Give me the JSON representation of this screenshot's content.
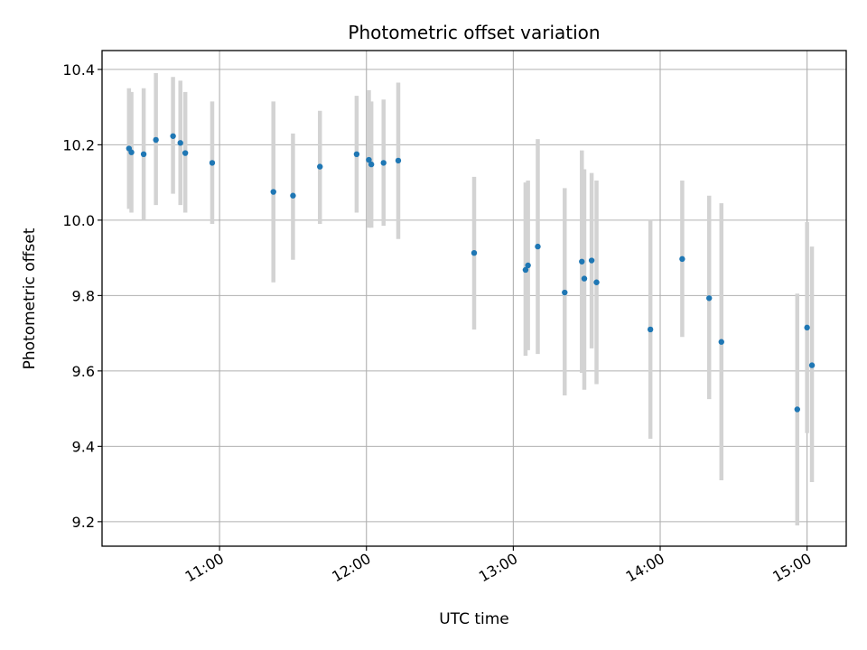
{
  "chart_data": {
    "type": "scatter",
    "title": "Photometric offset variation",
    "xlabel": "UTC time",
    "ylabel": "Photometric offset",
    "x_ticks": [
      "10:00",
      "11:00",
      "12:00",
      "13:00",
      "14:00",
      "15:00"
    ],
    "x_tick_labels": [
      "",
      "11:00",
      "12:00",
      "13:00",
      "14:00",
      "15:00"
    ],
    "y_ticks": [
      9.2,
      9.4,
      9.6,
      9.8,
      10.0,
      10.2,
      10.4
    ],
    "y_tick_labels": [
      "9.2",
      "9.4",
      "9.6",
      "9.8",
      "10.0",
      "10.2",
      "10.4"
    ],
    "xlim": [
      "10:12",
      "15:16"
    ],
    "ylim": [
      9.135,
      10.45
    ],
    "grid": true,
    "colors": {
      "marker": "#1f77b4",
      "errorbar": "#d3d3d3",
      "grid": "#b0b0b0",
      "axes": "#000000"
    },
    "points": [
      {
        "t": "10:23",
        "y": 10.19,
        "lo": 10.03,
        "hi": 10.35
      },
      {
        "t": "10:24",
        "y": 10.18,
        "lo": 10.02,
        "hi": 10.34
      },
      {
        "t": "10:29",
        "y": 10.175,
        "lo": 10.0,
        "hi": 10.35
      },
      {
        "t": "10:34",
        "y": 10.213,
        "lo": 10.04,
        "hi": 10.39
      },
      {
        "t": "10:41",
        "y": 10.223,
        "lo": 10.07,
        "hi": 10.38
      },
      {
        "t": "10:44",
        "y": 10.205,
        "lo": 10.04,
        "hi": 10.37
      },
      {
        "t": "10:46",
        "y": 10.178,
        "lo": 10.02,
        "hi": 10.34
      },
      {
        "t": "10:57",
        "y": 10.152,
        "lo": 9.99,
        "hi": 10.315
      },
      {
        "t": "11:22",
        "y": 10.075,
        "lo": 9.835,
        "hi": 10.315
      },
      {
        "t": "11:30",
        "y": 10.065,
        "lo": 9.895,
        "hi": 10.23
      },
      {
        "t": "11:41",
        "y": 10.142,
        "lo": 9.99,
        "hi": 10.29
      },
      {
        "t": "11:56",
        "y": 10.175,
        "lo": 10.02,
        "hi": 10.33
      },
      {
        "t": "12:01",
        "y": 10.16,
        "lo": 9.98,
        "hi": 10.345
      },
      {
        "t": "12:02",
        "y": 10.148,
        "lo": 9.98,
        "hi": 10.315
      },
      {
        "t": "12:07",
        "y": 10.152,
        "lo": 9.985,
        "hi": 10.32
      },
      {
        "t": "12:13",
        "y": 10.158,
        "lo": 9.95,
        "hi": 10.365
      },
      {
        "t": "12:44",
        "y": 9.913,
        "lo": 9.71,
        "hi": 10.115
      },
      {
        "t": "13:05",
        "y": 9.868,
        "lo": 9.64,
        "hi": 10.1
      },
      {
        "t": "13:06",
        "y": 9.88,
        "lo": 9.655,
        "hi": 10.105
      },
      {
        "t": "13:10",
        "y": 9.93,
        "lo": 9.645,
        "hi": 10.215
      },
      {
        "t": "13:21",
        "y": 9.808,
        "lo": 9.535,
        "hi": 10.085
      },
      {
        "t": "13:28",
        "y": 9.89,
        "lo": 9.595,
        "hi": 10.185
      },
      {
        "t": "13:29",
        "y": 9.845,
        "lo": 9.55,
        "hi": 10.135
      },
      {
        "t": "13:32",
        "y": 9.893,
        "lo": 9.66,
        "hi": 10.125
      },
      {
        "t": "13:34",
        "y": 9.835,
        "lo": 9.565,
        "hi": 10.105
      },
      {
        "t": "13:56",
        "y": 9.71,
        "lo": 9.42,
        "hi": 10.0
      },
      {
        "t": "14:09",
        "y": 9.897,
        "lo": 9.69,
        "hi": 10.105
      },
      {
        "t": "14:20",
        "y": 9.793,
        "lo": 9.525,
        "hi": 10.065
      },
      {
        "t": "14:25",
        "y": 9.677,
        "lo": 9.31,
        "hi": 10.045
      },
      {
        "t": "14:56",
        "y": 9.498,
        "lo": 9.19,
        "hi": 9.805
      },
      {
        "t": "15:00",
        "y": 9.715,
        "lo": 9.435,
        "hi": 9.995
      },
      {
        "t": "15:02",
        "y": 9.615,
        "lo": 9.305,
        "hi": 9.93
      }
    ]
  }
}
